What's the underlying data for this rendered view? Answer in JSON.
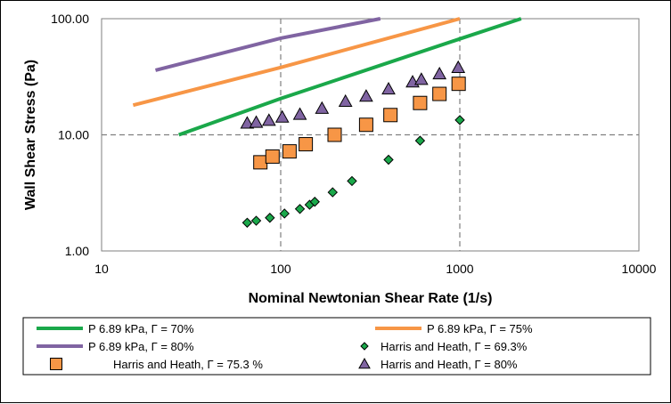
{
  "chart_data": {
    "type": "scatter",
    "xlabel": "Nominal Newtonian Shear Rate (1/s)",
    "ylabel": "Wall Shear Stress (Pa)",
    "xscale": "log",
    "yscale": "log",
    "xlim": [
      10,
      10000
    ],
    "ylim": [
      1,
      100
    ],
    "x_ticks": [
      10,
      100,
      1000,
      10000
    ],
    "x_tick_labels": [
      "10",
      "100",
      "1000",
      "10000"
    ],
    "y_ticks": [
      1,
      10,
      100
    ],
    "y_tick_labels": [
      "1.00",
      "10.00",
      "100.00"
    ],
    "grid": "major, dashed",
    "legend_position": "bottom",
    "series": [
      {
        "name": "P  6.89  kPa, Γ = 70%",
        "kind": "line",
        "color": "#1aa84a",
        "x": [
          27,
          100,
          1000,
          2200
        ],
        "y": [
          10,
          20.5,
          67,
          100
        ]
      },
      {
        "name": "P  6.89  kPa, Γ = 75%",
        "kind": "line",
        "color": "#f79646",
        "x": [
          15,
          100,
          1000
        ],
        "y": [
          18,
          38,
          100
        ]
      },
      {
        "name": "P  6.89  kPa, Γ = 80%",
        "kind": "line",
        "color": "#8064a2",
        "x": [
          20,
          100,
          360
        ],
        "y": [
          36,
          68,
          100
        ]
      },
      {
        "name": "Harris and Heath, Γ = 69.3%",
        "kind": "marker",
        "marker": "diamond",
        "color": "#1aa84a",
        "x": [
          65,
          73,
          87,
          105,
          128,
          145,
          155,
          195,
          250,
          400,
          600,
          1000
        ],
        "y": [
          1.75,
          1.82,
          1.93,
          2.1,
          2.3,
          2.5,
          2.65,
          3.2,
          4.0,
          6.1,
          8.9,
          13.4
        ]
      },
      {
        "name": "Harris and Heath, Γ = 75.3 %",
        "kind": "marker",
        "marker": "square",
        "color": "#f79646",
        "x": [
          77,
          90,
          112,
          138,
          200,
          300,
          410,
          600,
          770,
          985
        ],
        "y": [
          5.8,
          6.5,
          7.2,
          8.3,
          10.0,
          12.2,
          14.8,
          18.8,
          22.5,
          27.5
        ]
      },
      {
        "name": "Harris and Heath, Γ = 80%",
        "kind": "marker",
        "marker": "triangle",
        "color": "#8064a2",
        "x": [
          65,
          73,
          86,
          102,
          128,
          170,
          230,
          300,
          400,
          545,
          610,
          770,
          980
        ],
        "y": [
          12.6,
          12.8,
          13.3,
          14.2,
          15.0,
          16.9,
          19.4,
          21.5,
          24.8,
          28.5,
          30.0,
          33.5,
          38.0
        ]
      }
    ]
  }
}
